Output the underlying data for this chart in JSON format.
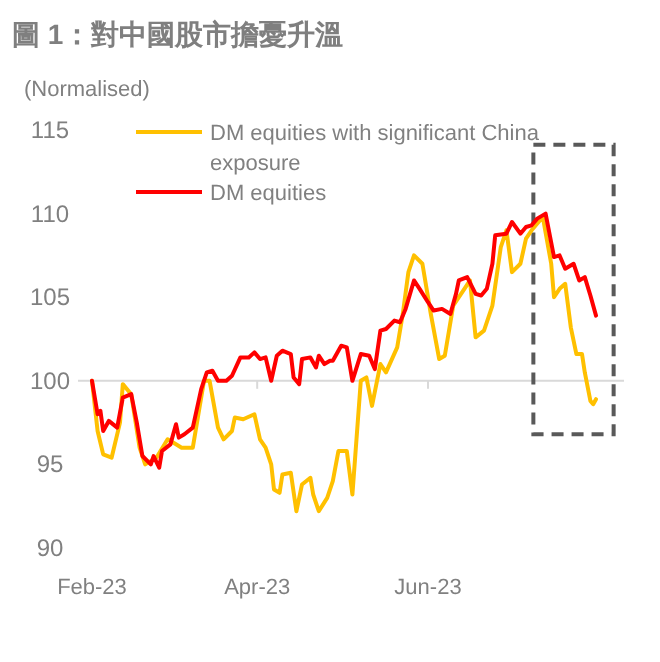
{
  "chart_data": {
    "type": "line",
    "title": "圖 1：對中國股市擔憂升溫",
    "ylabel": "(Normalised)",
    "xlim": [
      "2023-01-27",
      "2023-08-10"
    ],
    "xticks": [
      {
        "value": "2023-02-01",
        "label": "Feb-23"
      },
      {
        "value": "2023-04-01",
        "label": "Apr-23"
      },
      {
        "value": "2023-06-01",
        "label": "Jun-23"
      }
    ],
    "ylim": [
      90,
      115
    ],
    "yticks": [
      90,
      95,
      100,
      105,
      110,
      115
    ],
    "grid": false,
    "legend": "top left",
    "line_style": "solid",
    "marker": "none",
    "ref_lines": [
      {
        "axis": "y",
        "value": 100,
        "color": "#d9d9d9"
      }
    ],
    "series": [
      {
        "name": "DM equities with significant China exposure",
        "color": "#ffc000",
        "x": [
          "2023-02-01",
          "2023-02-03",
          "2023-02-05",
          "2023-02-08",
          "2023-02-11",
          "2023-02-12",
          "2023-02-15",
          "2023-02-18",
          "2023-02-20",
          "2023-02-24",
          "2023-02-28",
          "2023-03-03",
          "2023-03-05",
          "2023-03-09",
          "2023-03-11",
          "2023-03-13",
          "2023-03-15",
          "2023-03-18",
          "2023-03-20",
          "2023-03-23",
          "2023-03-24",
          "2023-03-27",
          "2023-03-31",
          "2023-04-02",
          "2023-04-04",
          "2023-04-06",
          "2023-04-07",
          "2023-04-09",
          "2023-04-10",
          "2023-04-13",
          "2023-04-15",
          "2023-04-17",
          "2023-04-20",
          "2023-04-21",
          "2023-04-23",
          "2023-04-26",
          "2023-04-28",
          "2023-04-30",
          "2023-05-03",
          "2023-05-05",
          "2023-05-08",
          "2023-05-10",
          "2023-05-12",
          "2023-05-15",
          "2023-05-17",
          "2023-05-21",
          "2023-05-23",
          "2023-05-25",
          "2023-05-27",
          "2023-05-30",
          "2023-06-02",
          "2023-06-05",
          "2023-06-07",
          "2023-06-10",
          "2023-06-14",
          "2023-06-16",
          "2023-06-18",
          "2023-06-21",
          "2023-06-24",
          "2023-06-27",
          "2023-06-29",
          "2023-07-01",
          "2023-07-04",
          "2023-07-06",
          "2023-07-08",
          "2023-07-12",
          "2023-07-15",
          "2023-07-16",
          "2023-07-18",
          "2023-07-20",
          "2023-07-22",
          "2023-07-24",
          "2023-07-26",
          "2023-07-27",
          "2023-07-29",
          "2023-07-30",
          "2023-07-31"
        ],
        "values": [
          100,
          97,
          95.6,
          95.4,
          97.5,
          99.8,
          99.2,
          96,
          95,
          95.4,
          96.5,
          96.2,
          96,
          96,
          98,
          100,
          100,
          97.2,
          96.5,
          97,
          97.8,
          97.7,
          98,
          96.5,
          96,
          95,
          93.5,
          93.3,
          94.4,
          94.5,
          92.2,
          93.8,
          94.2,
          93.2,
          92.2,
          93,
          94,
          95.8,
          95.8,
          93.2,
          100,
          100.2,
          98.5,
          101,
          100.5,
          102,
          104,
          106.5,
          107.5,
          107,
          104,
          101.3,
          101.5,
          104.5,
          105.5,
          106,
          102.6,
          103,
          104.5,
          108,
          109,
          106.5,
          107,
          108.5,
          109,
          109.8,
          107,
          105,
          105.5,
          105.8,
          103.2,
          101.6,
          101.6,
          100.5,
          98.8,
          98.6,
          98.9
        ]
      },
      {
        "name": "DM equities",
        "color": "#ff0000",
        "x": [
          "2023-02-01",
          "2023-02-03",
          "2023-02-04",
          "2023-02-05",
          "2023-02-07",
          "2023-02-10",
          "2023-02-12",
          "2023-02-15",
          "2023-02-17",
          "2023-02-19",
          "2023-02-22",
          "2023-02-23",
          "2023-02-25",
          "2023-02-26",
          "2023-03-01",
          "2023-03-03",
          "2023-03-04",
          "2023-03-06",
          "2023-03-09",
          "2023-03-12",
          "2023-03-14",
          "2023-03-16",
          "2023-03-18",
          "2023-03-21",
          "2023-03-23",
          "2023-03-26",
          "2023-03-29",
          "2023-03-31",
          "2023-04-02",
          "2023-04-04",
          "2023-04-06",
          "2023-04-08",
          "2023-04-10",
          "2023-04-13",
          "2023-04-14",
          "2023-04-16",
          "2023-04-17",
          "2023-04-20",
          "2023-04-22",
          "2023-04-23",
          "2023-04-25",
          "2023-04-27",
          "2023-04-28",
          "2023-05-01",
          "2023-05-03",
          "2023-05-05",
          "2023-05-08",
          "2023-05-11",
          "2023-05-13",
          "2023-05-15",
          "2023-05-17",
          "2023-05-20",
          "2023-05-22",
          "2023-05-24",
          "2023-05-27",
          "2023-05-29",
          "2023-06-01",
          "2023-06-03",
          "2023-06-06",
          "2023-06-09",
          "2023-06-11",
          "2023-06-12",
          "2023-06-15",
          "2023-06-18",
          "2023-06-20",
          "2023-06-22",
          "2023-06-24",
          "2023-06-25",
          "2023-06-29",
          "2023-07-01",
          "2023-07-04",
          "2023-07-06",
          "2023-07-08",
          "2023-07-10",
          "2023-07-13",
          "2023-07-16",
          "2023-07-18",
          "2023-07-20",
          "2023-07-23",
          "2023-07-25",
          "2023-07-27",
          "2023-07-29",
          "2023-07-31"
        ],
        "values": [
          100,
          98,
          98.2,
          97,
          97.6,
          97.2,
          99,
          99.2,
          97.5,
          95.5,
          95,
          95.5,
          94.8,
          95.8,
          96.2,
          97.4,
          96.6,
          96.8,
          97.2,
          99.5,
          100.5,
          100.6,
          100,
          100,
          100.3,
          101.4,
          101.4,
          101.7,
          101.3,
          101.4,
          100,
          101.5,
          101.8,
          101.6,
          100.2,
          99.8,
          101.3,
          101.4,
          100.8,
          101.5,
          101,
          101.2,
          101.2,
          102.1,
          102,
          100,
          101.6,
          101.5,
          100.7,
          103,
          103.1,
          103.6,
          103.5,
          104.3,
          106,
          105.5,
          104.7,
          104.2,
          104.3,
          104,
          105.2,
          106,
          106.2,
          105.2,
          105.1,
          105.5,
          107,
          108.7,
          108.8,
          109.5,
          108.8,
          109.2,
          109.3,
          109.7,
          110,
          107.4,
          107.5,
          106.7,
          107,
          106,
          106.2,
          105.1,
          103.9
        ]
      }
    ]
  }
}
